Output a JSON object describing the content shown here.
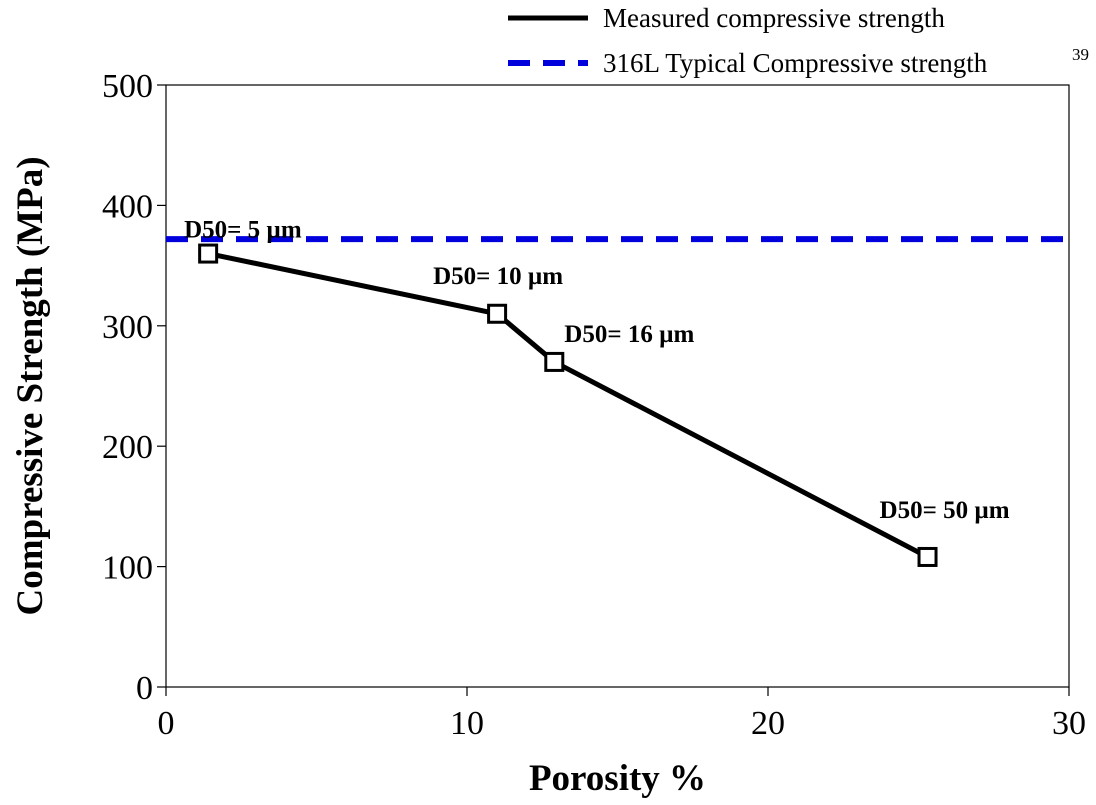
{
  "chart_data": {
    "type": "line",
    "xlabel": "Porosity %",
    "ylabel": "Compressive Strength (MPa)",
    "xlim": [
      0,
      30
    ],
    "ylim": [
      0,
      500
    ],
    "xticks": [
      0,
      10,
      20,
      30
    ],
    "yticks": [
      0,
      100,
      200,
      300,
      400,
      500
    ],
    "grid": false,
    "legend_position": "top-right",
    "series": [
      {
        "name": "Measured compressive strength",
        "style": "solid",
        "marker": "square",
        "color": "#000000",
        "x": [
          1.4,
          11.0,
          12.9,
          25.3
        ],
        "y": [
          360,
          310,
          270,
          108
        ],
        "labels": [
          "D50= 5 µm",
          "D50= 10 µm",
          "D50= 16 µm",
          "D50= 50 µm"
        ]
      },
      {
        "name": "316L Typical Compressive strength",
        "name_superscript": "39",
        "style": "dashed",
        "color": "#0000dd",
        "y_constant": 372
      }
    ]
  }
}
